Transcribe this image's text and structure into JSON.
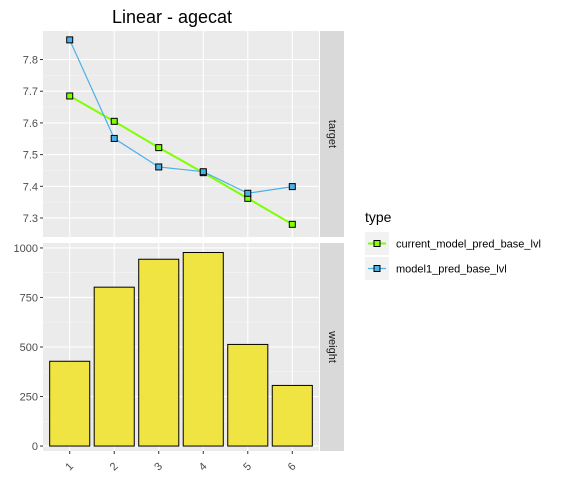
{
  "chart_data": {
    "type": "line",
    "title": "Linear - agecat",
    "x": [
      "1",
      "2",
      "3",
      "4",
      "5",
      "6"
    ],
    "legend": {
      "title": "type",
      "position": "right"
    },
    "panels": [
      {
        "strip_label": "target",
        "type": "line",
        "ylim": [
          7.24,
          7.89
        ],
        "yticks": [
          7.3,
          7.4,
          7.5,
          7.6,
          7.7,
          7.8
        ],
        "grid": true,
        "series": [
          {
            "name": "current_model_pred_base_lvl",
            "color": "#7FFF00",
            "values": [
              7.685,
              7.605,
              7.522,
              7.443,
              7.362,
              7.28
            ]
          },
          {
            "name": "model1_pred_base_lvl",
            "color": "#4DB0E6",
            "values": [
              7.862,
              7.551,
              7.461,
              7.446,
              7.378,
              7.399
            ]
          }
        ]
      },
      {
        "strip_label": "weight",
        "type": "bar",
        "ylim": [
          -25,
          1025
        ],
        "yticks": [
          0,
          250,
          500,
          750,
          1000
        ],
        "grid": true,
        "bar_color": "#F0E442",
        "values": [
          428,
          802,
          943,
          977,
          513,
          306
        ]
      }
    ]
  }
}
